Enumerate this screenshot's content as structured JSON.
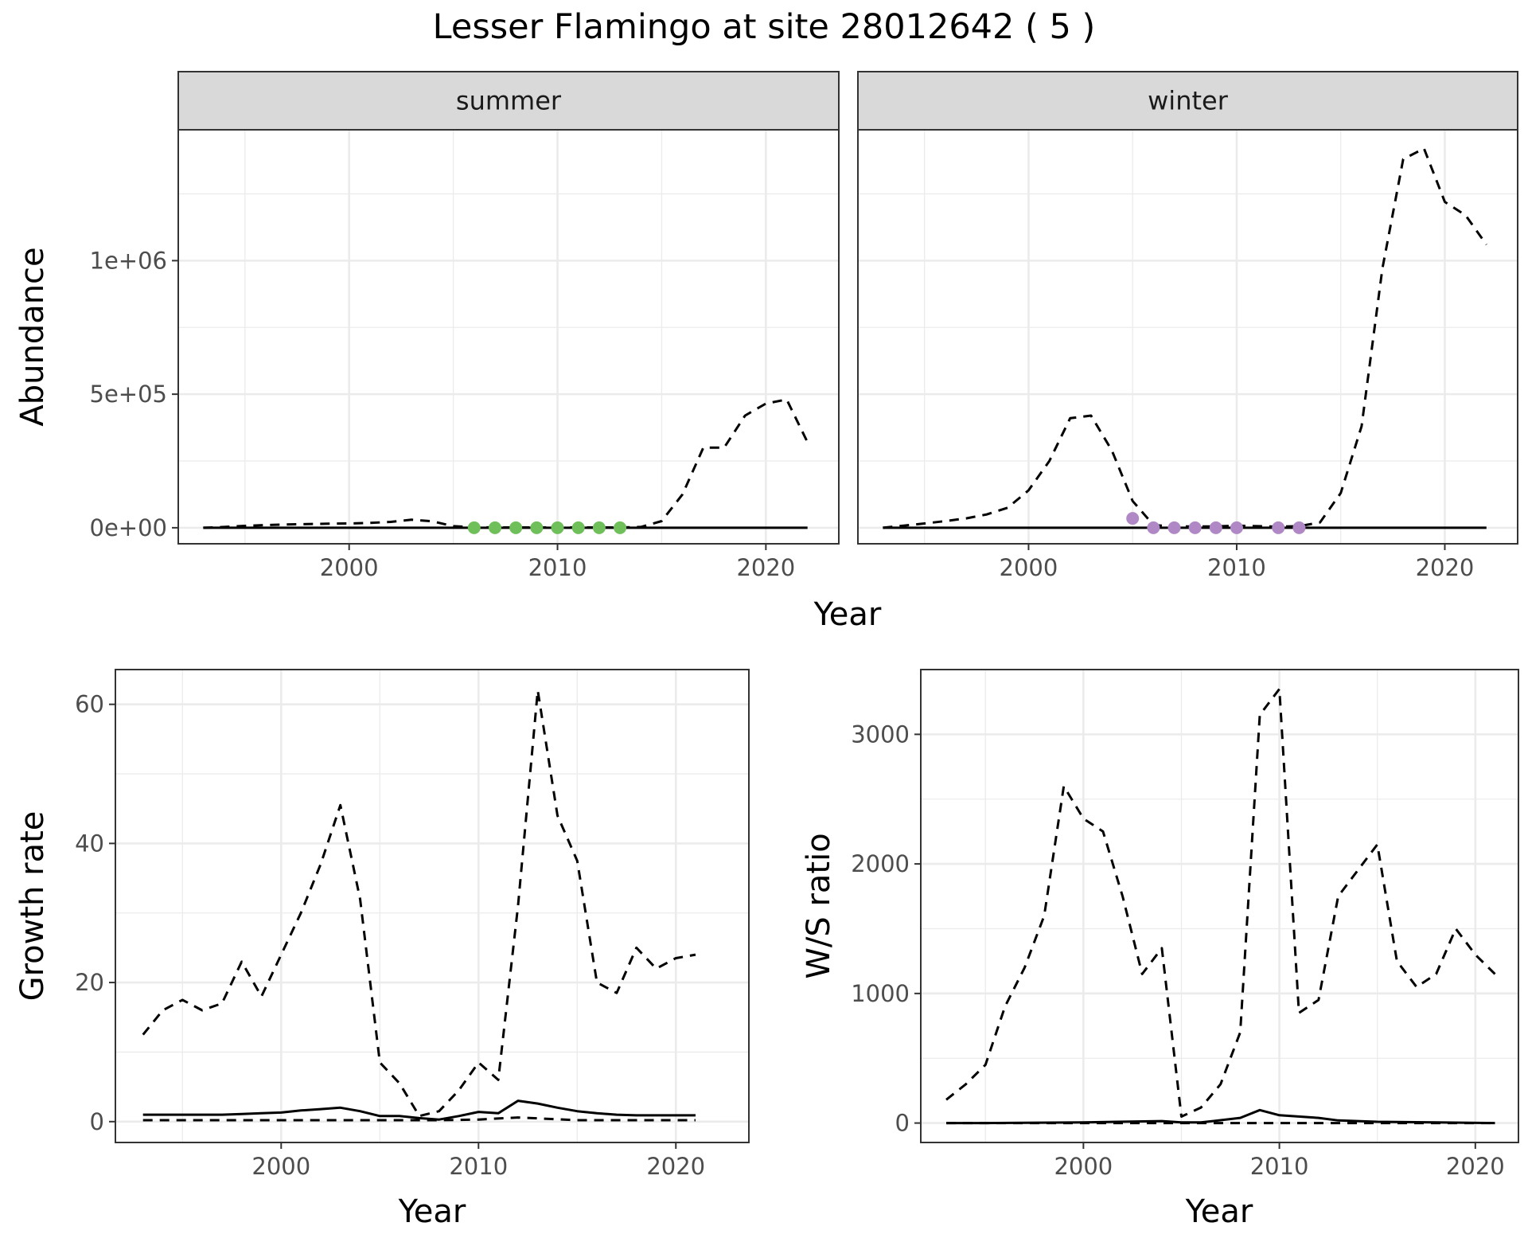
{
  "chart_data": {
    "type": "line",
    "title": "Lesser Flamingo at site 28012642 ( 5 )",
    "colors": {
      "summer_points": "#6fbf5a",
      "winter_points": "#b088c6"
    },
    "panels": [
      {
        "id": "abundance",
        "facets": [
          "summer",
          "winter"
        ],
        "xlabel": "Year",
        "ylabel": "Abundance",
        "xlim": [
          1991.8,
          2023.5
        ],
        "ylim": [
          -60000,
          1490000
        ],
        "x_ticks": [
          2000,
          2010,
          2020
        ],
        "x_tick_labels": [
          "2000",
          "2010",
          "2020"
        ],
        "y_ticks": [
          0,
          500000,
          1000000
        ],
        "y_tick_labels": [
          "0e+00",
          "5e+05",
          "1e+06"
        ],
        "grid": true,
        "facet_data": [
          {
            "label": "summer",
            "series": [
              {
                "style": "dashed",
                "x": [
                  1993,
                  1994,
                  1995,
                  1996,
                  1997,
                  1998,
                  1999,
                  2000,
                  2001,
                  2002,
                  2003,
                  2004,
                  2005,
                  2006,
                  2007,
                  2008,
                  2009,
                  2010,
                  2011,
                  2012,
                  2013,
                  2014,
                  2015,
                  2016,
                  2017,
                  2018,
                  2019,
                  2020,
                  2021,
                  2022
                ],
                "y": [
                  0,
                  3000,
                  7000,
                  10000,
                  12000,
                  14000,
                  15000,
                  16000,
                  18000,
                  22000,
                  30000,
                  24000,
                  6000,
                  2000,
                  1000,
                  1000,
                  1000,
                  1000,
                  1000,
                  1000,
                  1000,
                  3000,
                  25000,
                  125000,
                  300000,
                  300000,
                  420000,
                  465000,
                  480000,
                  320000
                ]
              },
              {
                "style": "solid",
                "x": [
                  1993,
                  2022
                ],
                "y": [
                  0,
                  0
                ]
              }
            ],
            "points": {
              "x": [
                2006,
                2007,
                2008,
                2009,
                2010,
                2011,
                2012,
                2013
              ],
              "y": [
                0,
                0,
                0,
                0,
                0,
                0,
                0,
                0
              ],
              "color": "#6fbf5a"
            }
          },
          {
            "label": "winter",
            "series": [
              {
                "style": "dashed",
                "x": [
                  1993,
                  1994,
                  1995,
                  1996,
                  1997,
                  1998,
                  1999,
                  2000,
                  2001,
                  2002,
                  2003,
                  2004,
                  2005,
                  2006,
                  2007,
                  2008,
                  2009,
                  2010,
                  2011,
                  2012,
                  2013,
                  2014,
                  2015,
                  2016,
                  2017,
                  2018,
                  2019,
                  2020,
                  2021,
                  2022
                ],
                "y": [
                  0,
                  8000,
                  16000,
                  25000,
                  35000,
                  50000,
                  75000,
                  140000,
                  250000,
                  410000,
                  420000,
                  290000,
                  100000,
                  10000,
                  5000,
                  5000,
                  5000,
                  8000,
                  6000,
                  4000,
                  6000,
                  20000,
                  130000,
                  380000,
                  970000,
                  1380000,
                  1420000,
                  1220000,
                  1170000,
                  1060000
                ]
              },
              {
                "style": "solid",
                "x": [
                  1993,
                  2022
                ],
                "y": [
                  0,
                  0
                ]
              }
            ],
            "points": {
              "x": [
                2005,
                2006,
                2007,
                2008,
                2009,
                2010,
                2012,
                2013
              ],
              "y": [
                35000,
                0,
                0,
                0,
                0,
                0,
                0,
                0
              ],
              "color": "#b088c6"
            }
          }
        ]
      },
      {
        "id": "growth",
        "xlabel": "Year",
        "ylabel": "Growth rate",
        "xlim": [
          1991.6,
          2023.7
        ],
        "ylim": [
          -3,
          65
        ],
        "x_ticks": [
          2000,
          2010,
          2020
        ],
        "x_tick_labels": [
          "2000",
          "2010",
          "2020"
        ],
        "y_ticks": [
          0,
          20,
          40,
          60
        ],
        "y_tick_labels": [
          "0",
          "20",
          "40",
          "60"
        ],
        "grid": true,
        "series": [
          {
            "style": "dashed",
            "x": [
              1993,
              1994,
              1995,
              1996,
              1997,
              1998,
              1999,
              2000,
              2001,
              2002,
              2003,
              2004,
              2005,
              2006,
              2007,
              2008,
              2009,
              2010,
              2011,
              2012,
              2013,
              2014,
              2015,
              2016,
              2017,
              2018,
              2019,
              2020,
              2021
            ],
            "y": [
              12.5,
              16,
              17.5,
              16,
              17,
              23,
              18,
              24,
              30,
              37,
              45.5,
              32,
              8.5,
              5.5,
              0.8,
              1.5,
              4.5,
              8.5,
              6,
              31,
              62,
              44,
              37.5,
              20,
              18.5,
              25,
              22,
              23.5,
              24
            ]
          },
          {
            "style": "solid",
            "x": [
              1993,
              1994,
              1995,
              1996,
              1997,
              1998,
              1999,
              2000,
              2001,
              2002,
              2003,
              2004,
              2005,
              2006,
              2007,
              2008,
              2009,
              2010,
              2011,
              2012,
              2013,
              2014,
              2015,
              2016,
              2017,
              2018,
              2019,
              2020,
              2021
            ],
            "y": [
              1,
              1,
              1,
              1,
              1,
              1.1,
              1.2,
              1.3,
              1.6,
              1.8,
              2,
              1.5,
              0.8,
              0.8,
              0.5,
              0.3,
              0.8,
              1.4,
              1.2,
              3,
              2.6,
              2,
              1.5,
              1.2,
              1,
              0.9,
              0.9,
              0.9,
              0.9
            ]
          },
          {
            "style": "dashed",
            "x": [
              1993,
              2000,
              2005,
              2008,
              2010,
              2012,
              2015,
              2021
            ],
            "y": [
              0.2,
              0.2,
              0.2,
              0.2,
              0.3,
              0.6,
              0.2,
              0.2
            ]
          }
        ]
      },
      {
        "id": "ratio",
        "xlabel": "Year",
        "ylabel": "W/S ratio",
        "xlim": [
          1991.7,
          2022.2
        ],
        "ylim": [
          -150,
          3500
        ],
        "x_ticks": [
          2000,
          2010,
          2020
        ],
        "x_tick_labels": [
          "2000",
          "2010",
          "2020"
        ],
        "y_ticks": [
          0,
          1000,
          2000,
          3000
        ],
        "y_tick_labels": [
          "0",
          "1000",
          "2000",
          "3000"
        ],
        "grid": true,
        "series": [
          {
            "style": "dashed",
            "x": [
              1993,
              1994,
              1995,
              1996,
              1997,
              1998,
              1999,
              2000,
              2001,
              2002,
              2003,
              2004,
              2005,
              2006,
              2007,
              2008,
              2009,
              2010,
              2011,
              2012,
              2013,
              2014,
              2015,
              2016,
              2017,
              2018,
              2019,
              2020,
              2021
            ],
            "y": [
              180,
              300,
              450,
              900,
              1200,
              1600,
              2600,
              2350,
              2250,
              1750,
              1150,
              1350,
              50,
              120,
              300,
              700,
              3150,
              3350,
              850,
              950,
              1750,
              1950,
              2150,
              1250,
              1050,
              1150,
              1500,
              1300,
              1150
            ]
          },
          {
            "style": "solid",
            "x": [
              1993,
              1995,
              2000,
              2004,
              2005,
              2006,
              2008,
              2009,
              2010,
              2012,
              2013,
              2015,
              2018,
              2021
            ],
            "y": [
              0,
              0,
              5,
              15,
              5,
              5,
              40,
              100,
              60,
              40,
              20,
              10,
              5,
              0
            ]
          },
          {
            "style": "dashed",
            "x": [
              1993,
              2021
            ],
            "y": [
              0,
              0
            ]
          }
        ]
      }
    ]
  }
}
